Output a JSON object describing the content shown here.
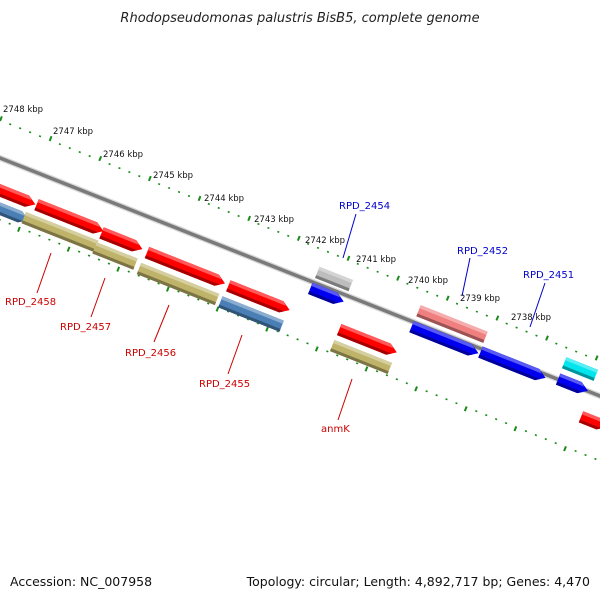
{
  "title": "Rhodopseudomonas palustris BisB5, complete genome",
  "footer": {
    "accession": "Accession: NC_007958",
    "summary": "Topology: circular; Length: 4,892,717 bp; Genes: 4,470"
  },
  "colors": {
    "red": "#ff0000",
    "blue": "#0000ee",
    "steel": "#4a7fb5",
    "olive": "#bfb36a",
    "grey": "#bdbdbd",
    "pink": "#f08080",
    "cyan": "#00e5ee",
    "backbone": "#7a7a7a",
    "tick": "#1a8a1a",
    "label_red": "#cc0000",
    "label_blue": "#0000cc"
  },
  "scale": {
    "unit": "kbp",
    "ticks": [
      {
        "kbp": 2748,
        "label": "2748 kbp"
      },
      {
        "kbp": 2747,
        "label": "2747 kbp"
      },
      {
        "kbp": 2746,
        "label": "2746 kbp"
      },
      {
        "kbp": 2745,
        "label": "2745 kbp"
      },
      {
        "kbp": 2744,
        "label": "2744 kbp"
      },
      {
        "kbp": 2743,
        "label": "2743 kbp"
      },
      {
        "kbp": 2742,
        "label": "2742 kbp"
      },
      {
        "kbp": 2741,
        "label": "2741 kbp"
      },
      {
        "kbp": 2740,
        "label": "2740 kbp"
      },
      {
        "kbp": 2739,
        "label": "2739 kbp"
      },
      {
        "kbp": 2738,
        "label": "2738 kbp"
      }
    ]
  },
  "labels": [
    {
      "text": "RPD_2454",
      "color": "label_blue"
    },
    {
      "text": "RPD_2452",
      "color": "label_blue"
    },
    {
      "text": "RPD_2451",
      "color": "label_blue"
    },
    {
      "text": "RPD_2458",
      "color": "label_red"
    },
    {
      "text": "RPD_2457",
      "color": "label_red"
    },
    {
      "text": "RPD_2456",
      "color": "label_red"
    },
    {
      "text": "RPD_2455",
      "color": "label_red"
    },
    {
      "text": "anmK",
      "color": "label_red"
    }
  ]
}
